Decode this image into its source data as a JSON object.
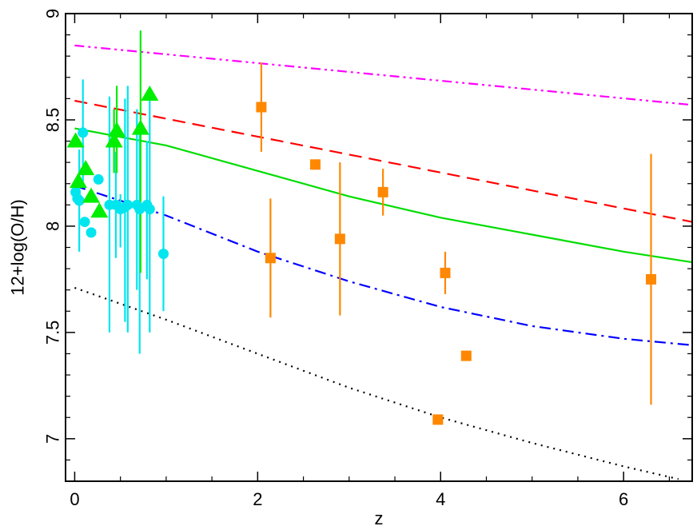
{
  "chart_data": {
    "type": "scatter",
    "title": "",
    "xlabel": "z",
    "ylabel": "12+log(O/H)",
    "xlim": [
      -0.1,
      6.75
    ],
    "ylim": [
      6.8,
      9.0
    ],
    "x_ticks": [
      0,
      2,
      4,
      6
    ],
    "x_tick_labels": [
      "0",
      "2",
      "4",
      "6"
    ],
    "y_ticks": [
      7.0,
      7.5,
      8.0,
      8.5,
      9.0
    ],
    "y_tick_labels": [
      "7",
      "7.5",
      "8",
      "8.5",
      "9"
    ],
    "grid": false,
    "curves": [
      {
        "style": "dash-dot-dot",
        "color": "#ff00ff",
        "x": [
          0,
          6.75
        ],
        "y": [
          8.85,
          8.57
        ]
      },
      {
        "style": "dashed",
        "color": "#ff0000",
        "x": [
          0,
          6.75
        ],
        "y": [
          8.59,
          8.02
        ]
      },
      {
        "style": "solid",
        "color": "#00dd00",
        "x": [
          0,
          1,
          2,
          3,
          4,
          5,
          6,
          6.75
        ],
        "y": [
          8.46,
          8.38,
          8.26,
          8.14,
          8.04,
          7.96,
          7.88,
          7.83
        ]
      },
      {
        "style": "dash-dot",
        "color": "#0000ff",
        "x": [
          0,
          1,
          2,
          3,
          4,
          5,
          6,
          6.75
        ],
        "y": [
          8.19,
          8.05,
          7.88,
          7.74,
          7.62,
          7.53,
          7.47,
          7.44
        ]
      },
      {
        "style": "dotted",
        "color": "#000000",
        "x": [
          0,
          1,
          2,
          3,
          4,
          5,
          6,
          6.6
        ],
        "y": [
          7.71,
          7.56,
          7.4,
          7.24,
          7.1,
          6.98,
          6.87,
          6.81
        ]
      }
    ],
    "series": [
      {
        "marker": "square",
        "color": "#ff8800",
        "points": [
          {
            "x": 2.04,
            "y": 8.56,
            "ylo": 8.35,
            "yhi": 8.77
          },
          {
            "x": 2.14,
            "y": 7.85,
            "ylo": 7.57,
            "yhi": 8.13
          },
          {
            "x": 2.63,
            "y": 8.29
          },
          {
            "x": 2.9,
            "y": 7.94,
            "ylo": 7.58,
            "yhi": 8.3
          },
          {
            "x": 3.37,
            "y": 8.16,
            "ylo": 8.05,
            "yhi": 8.27
          },
          {
            "x": 3.97,
            "y": 7.09
          },
          {
            "x": 4.05,
            "y": 7.78,
            "ylo": 7.68,
            "yhi": 7.88
          },
          {
            "x": 4.28,
            "y": 7.39
          },
          {
            "x": 6.3,
            "y": 7.75,
            "ylo": 7.16,
            "yhi": 8.34
          }
        ]
      },
      {
        "marker": "circle",
        "color": "#00e5ee",
        "points": [
          {
            "x": 0.01,
            "y": 8.16
          },
          {
            "x": 0.03,
            "y": 8.13
          },
          {
            "x": 0.05,
            "y": 8.12,
            "ylo": 7.88,
            "yhi": 8.36
          },
          {
            "x": 0.09,
            "y": 8.44,
            "ylo": 8.2,
            "yhi": 8.69
          },
          {
            "x": 0.11,
            "y": 8.02
          },
          {
            "x": 0.18,
            "y": 7.97
          },
          {
            "x": 0.26,
            "y": 8.22
          },
          {
            "x": 0.38,
            "y": 8.1,
            "ylo": 7.5,
            "yhi": 8.61
          },
          {
            "x": 0.45,
            "y": 8.1,
            "ylo": 7.85,
            "yhi": 8.35
          },
          {
            "x": 0.5,
            "y": 8.08,
            "ylo": 7.9,
            "yhi": 8.15
          },
          {
            "x": 0.55,
            "y": 8.09,
            "ylo": 7.55,
            "yhi": 8.6
          },
          {
            "x": 0.58,
            "y": 8.1,
            "ylo": 7.5,
            "yhi": 8.66
          },
          {
            "x": 0.68,
            "y": 8.1,
            "ylo": 7.7,
            "yhi": 8.55
          },
          {
            "x": 0.71,
            "y": 8.08,
            "ylo": 7.4,
            "yhi": 8.45
          },
          {
            "x": 0.79,
            "y": 8.1,
            "ylo": 7.75,
            "yhi": 8.4
          },
          {
            "x": 0.82,
            "y": 8.08,
            "ylo": 7.5,
            "yhi": 8.63
          },
          {
            "x": 0.97,
            "y": 7.87,
            "ylo": 7.6,
            "yhi": 8.14
          }
        ]
      },
      {
        "marker": "triangle",
        "color": "#00ee00",
        "points": [
          {
            "x": 0.01,
            "y": 8.4
          },
          {
            "x": 0.04,
            "y": 8.21
          },
          {
            "x": 0.12,
            "y": 8.27
          },
          {
            "x": 0.18,
            "y": 8.14
          },
          {
            "x": 0.27,
            "y": 8.07
          },
          {
            "x": 0.43,
            "y": 8.4,
            "ylo": 8.25,
            "yhi": 8.55
          },
          {
            "x": 0.46,
            "y": 8.45,
            "ylo": 8.25,
            "yhi": 8.66
          },
          {
            "x": 0.72,
            "y": 8.46,
            "ylo": 7.78,
            "yhi": 8.92
          },
          {
            "x": 0.82,
            "y": 8.62
          }
        ]
      }
    ]
  }
}
